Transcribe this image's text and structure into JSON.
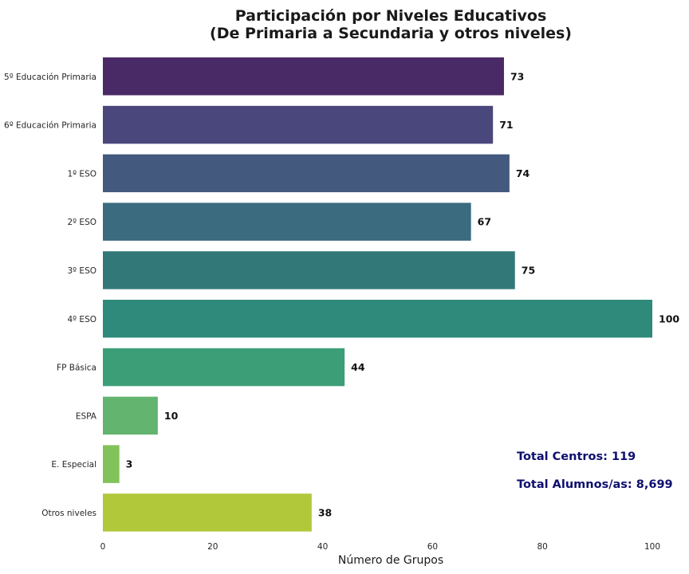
{
  "chart_data": {
    "type": "bar",
    "orientation": "horizontal",
    "title": [
      "Participación por Niveles Educativos",
      "(De Primaria a Secundaria y otros niveles)"
    ],
    "xlabel": "Número de Grupos",
    "ylabel": "",
    "categories": [
      "5º Educación Primaria",
      "6º Educación Primaria",
      "1º ESO",
      "2º ESO",
      "3º ESO",
      "4º ESO",
      "FP Básica",
      "ESPA",
      "E. Especial",
      "Otros niveles"
    ],
    "values": [
      73,
      71,
      74,
      67,
      75,
      100,
      44,
      10,
      3,
      38
    ],
    "colors": [
      "#4a2a66",
      "#4a477c",
      "#43597e",
      "#3a6b7f",
      "#337879",
      "#2f8a7b",
      "#3b9e77",
      "#62b46e",
      "#82c25a",
      "#b1c83a"
    ],
    "xlim": [
      0,
      100
    ],
    "xticks": [
      0,
      20,
      40,
      60,
      80,
      100
    ],
    "grid": false,
    "annotations": [
      {
        "text": "Total Centros: 119",
        "color": "#0e0f6e"
      },
      {
        "text": "Total Alumnos/as: 8,699",
        "color": "#0e0f6e"
      }
    ]
  }
}
